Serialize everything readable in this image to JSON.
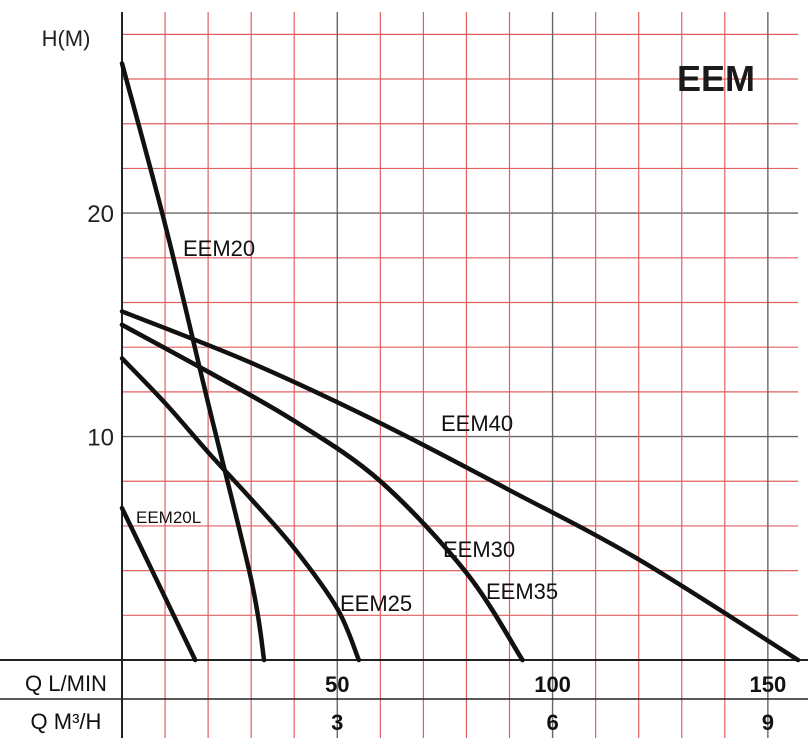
{
  "chart_data": {
    "type": "line",
    "title": "EEM",
    "ylabel": "H(M)",
    "xlabel_rows": [
      "Q L/MIN",
      "Q M³/H"
    ],
    "xlim": [
      0,
      157
    ],
    "ylim": [
      0,
      29
    ],
    "y_ticks": [
      10,
      20
    ],
    "x_ticks_lmin": [
      50,
      100,
      150
    ],
    "x_ticks_m3h": [
      3,
      6,
      9
    ],
    "grid": true,
    "colors": {
      "minor_grid": "#e06060",
      "major_grid": "#666666",
      "curve": "#111111"
    },
    "series": [
      {
        "name": "EEM20",
        "x": [
          0,
          10,
          20,
          30,
          33
        ],
        "y": [
          26.7,
          19.5,
          11.5,
          3.6,
          0
        ]
      },
      {
        "name": "EEM20L",
        "x": [
          0,
          8,
          17
        ],
        "y": [
          6.8,
          3.6,
          0
        ]
      },
      {
        "name": "EEM25",
        "x": [
          0,
          10,
          20,
          30,
          40,
          50,
          55
        ],
        "y": [
          13.5,
          11.5,
          9.3,
          7.2,
          5.0,
          2.3,
          0
        ]
      },
      {
        "name": "EEM30",
        "x": [
          0,
          20,
          40,
          60,
          80,
          93
        ],
        "y": [
          15.0,
          12.9,
          10.7,
          8.0,
          3.9,
          0
        ]
      },
      {
        "name": "EEM35",
        "x": [
          0,
          20,
          40,
          60,
          80,
          93
        ],
        "y": [
          15.0,
          12.9,
          10.7,
          8.0,
          3.9,
          0
        ]
      },
      {
        "name": "EEM40",
        "x": [
          0,
          30,
          60,
          90,
          120,
          157
        ],
        "y": [
          15.6,
          13.3,
          10.6,
          7.6,
          4.5,
          0
        ]
      }
    ]
  }
}
